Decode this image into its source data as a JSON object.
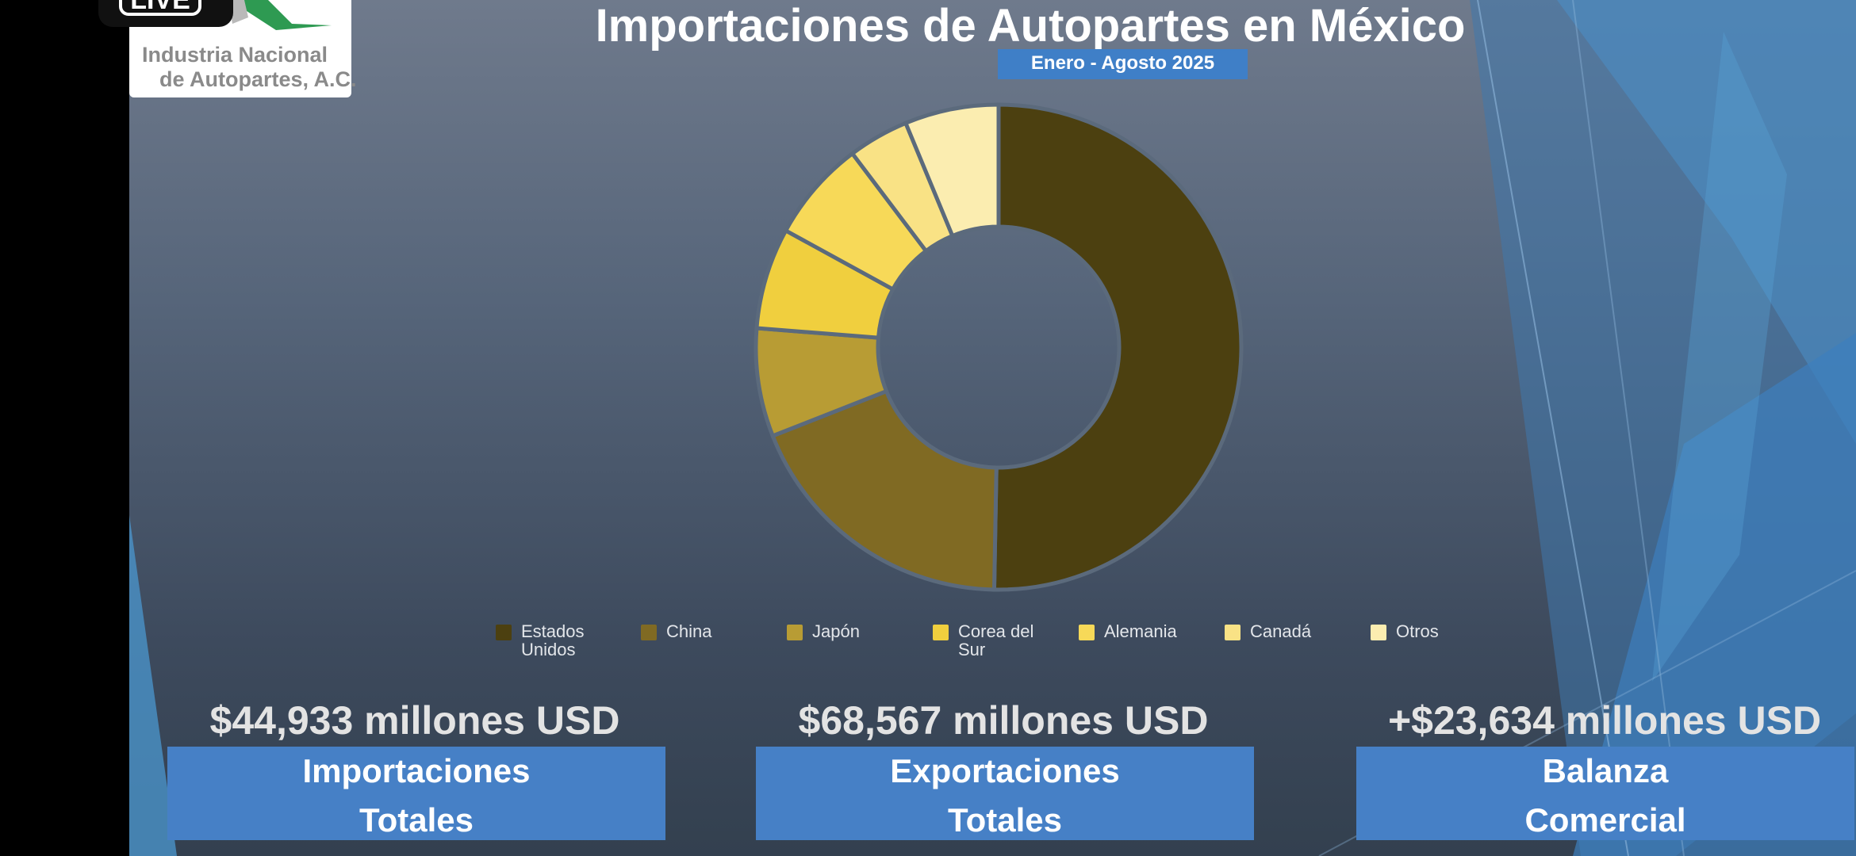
{
  "overlay": {
    "live_badge": "LIVE"
  },
  "logo": {
    "line1": "Industria Nacional",
    "line2": "de Autopartes, A.C."
  },
  "colors": {
    "accent_box": "#4680c6",
    "subtitle_bg": "#3f7fc7",
    "background_top": "#6f7a8c",
    "background_bottom": "#33404f"
  },
  "chart_data": {
    "type": "pie",
    "donut": true,
    "title": "Importaciones de Autopartes en México",
    "subtitle": "Enero - Agosto 2025",
    "categories": [
      "Estados Unidos",
      "China",
      "Japón",
      "Corea del Sur",
      "Alemania",
      "Canadá",
      "Otros"
    ],
    "values": [
      52.3,
      19.5,
      7.5,
      7.0,
      7.0,
      4.2,
      6.5
    ],
    "colors": [
      "#4c4010",
      "#806a23",
      "#b89c34",
      "#f0cf3e",
      "#f7d958",
      "#f9e285",
      "#fbedb0"
    ],
    "legend_position": "bottom"
  },
  "stats": [
    {
      "value": "$44,933 millones USD",
      "label_line1": "Importaciones",
      "label_line2": "Totales"
    },
    {
      "value": "$68,567 millones USD",
      "label_line1": "Exportaciones",
      "label_line2": "Totales"
    },
    {
      "value": "+$23,634 millones USD",
      "label_line1": "Balanza",
      "label_line2": "Comercial"
    }
  ]
}
